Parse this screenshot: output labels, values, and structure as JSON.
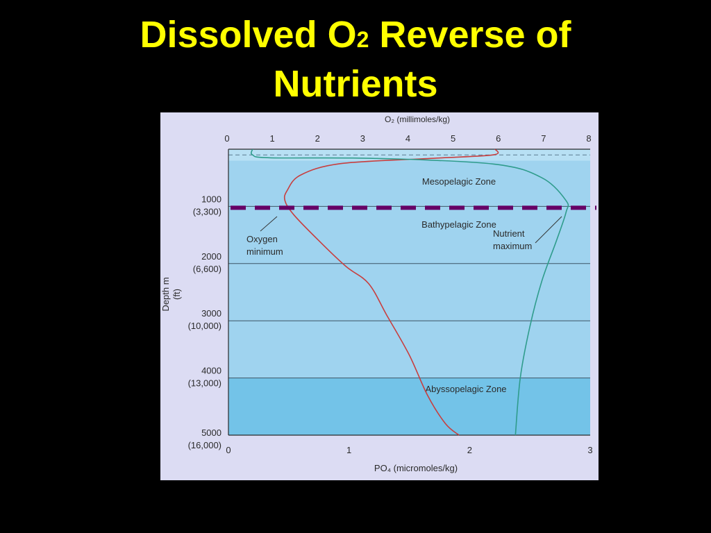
{
  "slide": {
    "title_part1": "Dissolved O",
    "title_sub": "2",
    "title_part2": " Reverse of",
    "title_line2": "Nutrients",
    "title_color": "#ffff00",
    "background": "#000000"
  },
  "chart_data": {
    "type": "line",
    "top_axis": {
      "label": "O₂ (millimoles/kg)",
      "ticks": [
        "0",
        "1",
        "2",
        "3",
        "4",
        "5",
        "6",
        "7",
        "8"
      ],
      "range": [
        0,
        8
      ]
    },
    "bottom_axis": {
      "label": "PO₄ (micromoles/kg)",
      "ticks": [
        "0",
        "1",
        "2",
        "3"
      ],
      "range": [
        0,
        3
      ]
    },
    "y_axis": {
      "label_line1": "Depth m",
      "label_line2": "(ft)",
      "range": [
        0,
        5000
      ],
      "inverted": true,
      "ticks": [
        {
          "m": "1000",
          "ft": "(3,300)"
        },
        {
          "m": "2000",
          "ft": "(6,600)"
        },
        {
          "m": "3000",
          "ft": "(10,000)"
        },
        {
          "m": "4000",
          "ft": "(13,000)"
        },
        {
          "m": "5000",
          "ft": "(16,000)"
        }
      ]
    },
    "zones": [
      {
        "label": "Mesopelagic Zone",
        "top_m": 200,
        "bottom_m": 1000,
        "color": "#9fd3ef"
      },
      {
        "label": "Bathypelagic Zone",
        "top_m": 1000,
        "bottom_m": 4000,
        "color": "#9fd3ef"
      },
      {
        "label": "Abyssopelagic Zone",
        "top_m": 4000,
        "bottom_m": 5000,
        "color": "#73c3e8"
      }
    ],
    "thermocline_dashed_m": 100,
    "highlight_line": {
      "depth_m": 1000,
      "color": "#660066"
    },
    "series": [
      {
        "name": "O₂",
        "axis": "top",
        "color": "#c83e3e",
        "points": [
          {
            "o2": 5.9,
            "depth": 0
          },
          {
            "o2": 5.85,
            "depth": 100
          },
          {
            "o2": 4.5,
            "depth": 160
          },
          {
            "o2": 2.5,
            "depth": 250
          },
          {
            "o2": 1.6,
            "depth": 450
          },
          {
            "o2": 1.3,
            "depth": 720
          },
          {
            "o2": 1.25,
            "depth": 900
          },
          {
            "o2": 1.45,
            "depth": 1150
          },
          {
            "o2": 2.0,
            "depth": 1600
          },
          {
            "o2": 2.6,
            "depth": 2050
          },
          {
            "o2": 3.1,
            "depth": 2350
          },
          {
            "o2": 3.5,
            "depth": 2900
          },
          {
            "o2": 4.0,
            "depth": 3600
          },
          {
            "o2": 4.4,
            "depth": 4300
          },
          {
            "o2": 4.8,
            "depth": 4800
          },
          {
            "o2": 5.1,
            "depth": 5000
          }
        ]
      },
      {
        "name": "PO₄",
        "axis": "bottom",
        "color": "#2f9c8c",
        "points": [
          {
            "po4": 0.2,
            "depth": 0
          },
          {
            "po4": 0.2,
            "depth": 100
          },
          {
            "po4": 0.35,
            "depth": 150
          },
          {
            "po4": 1.2,
            "depth": 160
          },
          {
            "po4": 2.2,
            "depth": 260
          },
          {
            "po4": 2.6,
            "depth": 500
          },
          {
            "po4": 2.8,
            "depth": 900
          },
          {
            "po4": 2.8,
            "depth": 1100
          },
          {
            "po4": 2.72,
            "depth": 1600
          },
          {
            "po4": 2.6,
            "depth": 2300
          },
          {
            "po4": 2.5,
            "depth": 3100
          },
          {
            "po4": 2.42,
            "depth": 4000
          },
          {
            "po4": 2.38,
            "depth": 5000
          }
        ]
      }
    ],
    "annotations": [
      {
        "line1": "Oxygen",
        "line2": "minimum"
      },
      {
        "line1": "Nutrient",
        "line2": "maximum"
      }
    ]
  }
}
